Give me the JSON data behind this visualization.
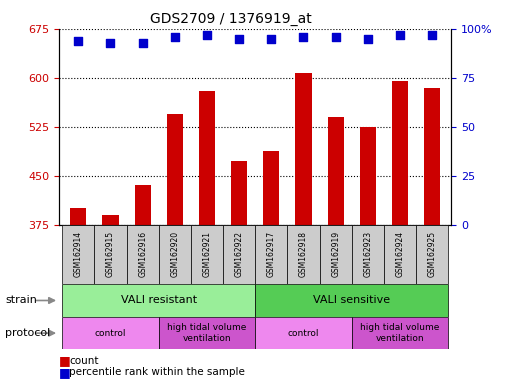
{
  "title": "GDS2709 / 1376919_at",
  "samples": [
    "GSM162914",
    "GSM162915",
    "GSM162916",
    "GSM162920",
    "GSM162921",
    "GSM162922",
    "GSM162917",
    "GSM162918",
    "GSM162919",
    "GSM162923",
    "GSM162924",
    "GSM162925"
  ],
  "counts": [
    400,
    390,
    435,
    545,
    580,
    472,
    488,
    607,
    540,
    525,
    595,
    585
  ],
  "percentile_ranks": [
    94,
    93,
    93,
    96,
    97,
    95,
    95,
    96,
    96,
    95,
    97,
    97
  ],
  "ylim_left": [
    375,
    675
  ],
  "ylim_right": [
    0,
    100
  ],
  "yticks_left": [
    375,
    450,
    525,
    600,
    675
  ],
  "yticks_right": [
    0,
    25,
    50,
    75,
    100
  ],
  "bar_color": "#cc0000",
  "scatter_color": "#0000cc",
  "left_axis_color": "#cc0000",
  "right_axis_color": "#0000cc",
  "strain_resistant_color": "#99ee99",
  "strain_sensitive_color": "#55cc55",
  "protocol_control_color": "#ee88ee",
  "protocol_ventilation_color": "#cc55cc",
  "sample_box_color": "#cccccc",
  "bar_width": 0.5,
  "scatter_size": 30,
  "scatter_marker": "s",
  "right_tick_labels": [
    "0",
    "25",
    "50",
    "75",
    "100%"
  ],
  "grid_linestyle": ":",
  "grid_color": "#000000",
  "grid_linewidth": 0.8
}
